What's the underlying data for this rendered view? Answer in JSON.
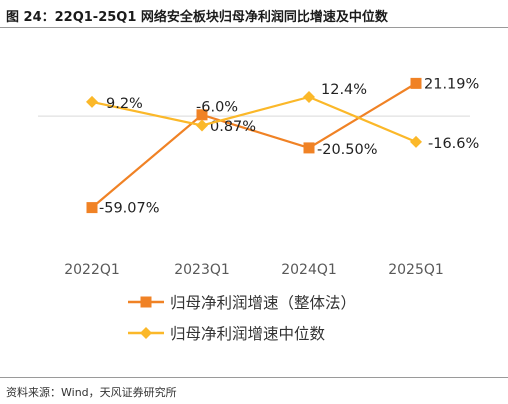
{
  "figure": {
    "title": "图 24：22Q1-25Q1 网络安全板块归母净利润同比增速及中位数",
    "source": "资料来源：Wind，天风证券研究所"
  },
  "colors": {
    "series1": "#f08225",
    "series2": "#fbb829"
  },
  "chart_data": {
    "type": "line",
    "categories": [
      "2022Q1",
      "2023Q1",
      "2024Q1",
      "2025Q1"
    ],
    "series": [
      {
        "name": "归母净利润增速（整体法）",
        "values": [
          -59.07,
          0.87,
          -20.5,
          21.19
        ],
        "labels": [
          "-59.07%",
          "0.87%",
          "-20.50%",
          "21.19%"
        ],
        "marker": "square"
      },
      {
        "name": "归母净利润增速中位数",
        "values": [
          9.2,
          -6.0,
          12.4,
          -16.6
        ],
        "labels": [
          "9.2%",
          "-6.0%",
          "12.4%",
          "-16.6%"
        ],
        "marker": "diamond"
      }
    ],
    "ylim": [
      -80,
      35
    ],
    "grid": false,
    "legend_position": "bottom"
  }
}
